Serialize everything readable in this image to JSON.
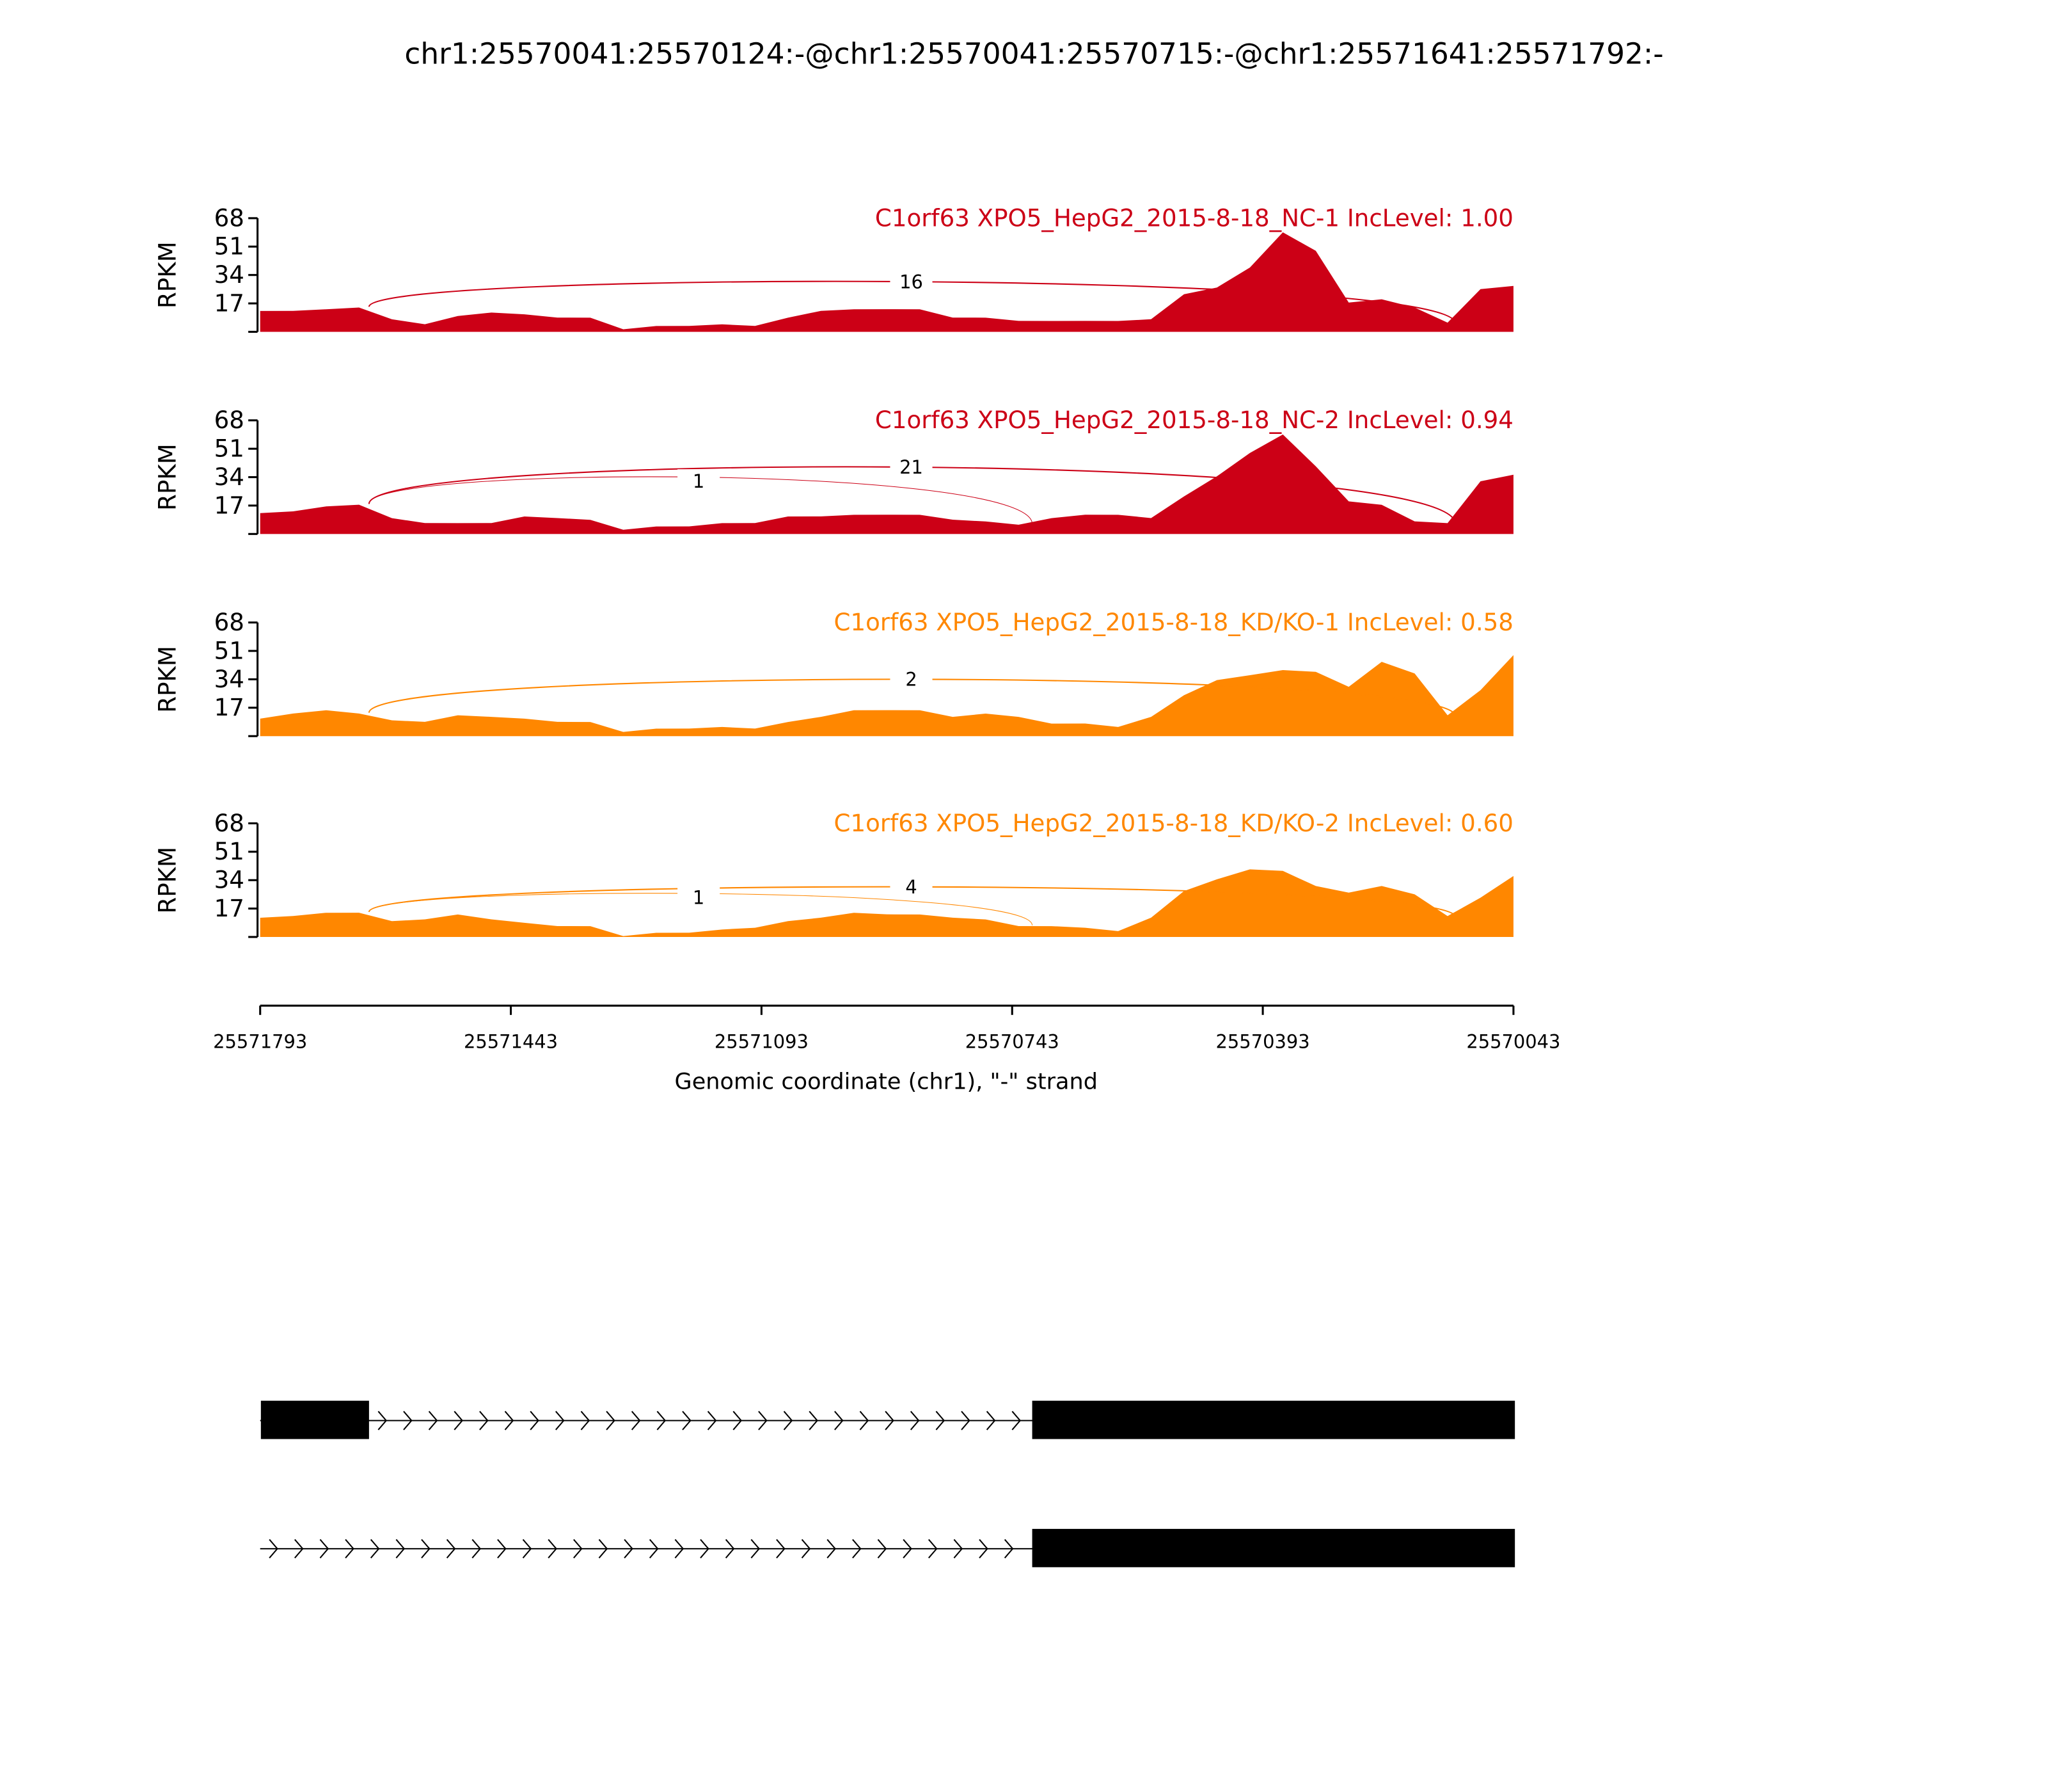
{
  "chart_data": {
    "type": "area",
    "title": "chr1:25570041:25570124:-@chr1:25570041:25570715:-@chr1:25571641:25571792:-",
    "xlabel": "Genomic coordinate (chr1), \"-\" strand",
    "ylabel": "RPKM",
    "xlim": [
      25571793,
      25570043
    ],
    "ylim": [
      0,
      68
    ],
    "yticks": [
      "17",
      "34",
      "51",
      "68"
    ],
    "xticks": [
      "25571793",
      "25571443",
      "25571093",
      "25570743",
      "25570393",
      "25570043"
    ],
    "colors": {
      "NC": "#cc0016",
      "KD": "#ff8700"
    },
    "x": [
      25571793,
      25571747,
      25571701,
      25571655,
      25571609,
      25571563,
      25571517,
      25571470,
      25571424,
      25571378,
      25571332,
      25571286,
      25571240,
      25571194,
      25571148,
      25571102,
      25571056,
      25571010,
      25570964,
      25570918,
      25570872,
      25570826,
      25570780,
      25570734,
      25570688,
      25570641,
      25570595,
      25570549,
      25570503,
      25570457,
      25570411,
      25570365,
      25570319,
      25570273,
      25570227,
      25570181,
      25570135,
      25570089,
      25570043
    ],
    "series": [
      {
        "name": "C1orf63 XPO5_HepG2_2015-8-18_NC-1 IncLevel: 1.00",
        "group": "NC",
        "values": [
          12,
          13,
          13,
          15,
          7,
          5,
          9,
          12,
          10,
          9,
          8,
          2,
          3,
          4,
          4,
          4,
          8,
          13,
          13,
          14,
          13,
          9,
          8,
          7,
          6,
          7,
          6,
          8,
          22,
          27,
          38,
          60,
          48,
          18,
          19,
          15,
          5,
          26,
          27
        ],
        "junctions": [
          {
            "from": 25571641,
            "to": 25570124,
            "count": "16",
            "height": 30
          }
        ]
      },
      {
        "name": "C1orf63 XPO5_HepG2_2015-8-18_NC-2 IncLevel: 0.94",
        "group": "NC",
        "values": [
          12,
          14,
          16,
          18,
          9,
          7,
          6,
          7,
          10,
          10,
          8,
          3,
          4,
          5,
          6,
          7,
          10,
          11,
          11,
          12,
          11,
          9,
          7,
          6,
          9,
          12,
          11,
          10,
          22,
          35,
          48,
          60,
          40,
          20,
          17,
          8,
          6,
          32,
          35
        ],
        "junctions": [
          {
            "from": 25571641,
            "to": 25570124,
            "count": "21",
            "height": 40
          },
          {
            "from": 25571641,
            "to": 25570715,
            "count": "1",
            "height": 34
          }
        ]
      },
      {
        "name": "C1orf63 XPO5_HepG2_2015-8-18_KD/KO-1 IncLevel: 0.58",
        "group": "KD",
        "values": [
          10,
          14,
          15,
          14,
          9,
          9,
          12,
          12,
          10,
          9,
          8,
          3,
          4,
          5,
          5,
          5,
          8,
          12,
          15,
          16,
          15,
          12,
          13,
          12,
          7,
          8,
          5,
          12,
          24,
          34,
          36,
          40,
          38,
          30,
          44,
          38,
          12,
          28,
          48
        ],
        "junctions": [
          {
            "from": 25571641,
            "to": 25570124,
            "count": "2",
            "height": 34
          }
        ]
      },
      {
        "name": "C1orf63 XPO5_HepG2_2015-8-18_KD/KO-2 IncLevel: 0.60",
        "group": "KD",
        "values": [
          11,
          13,
          14,
          15,
          9,
          11,
          13,
          11,
          8,
          7,
          6,
          1,
          2,
          3,
          4,
          6,
          9,
          12,
          14,
          14,
          13,
          12,
          10,
          7,
          6,
          6,
          3,
          12,
          27,
          35,
          40,
          40,
          30,
          27,
          30,
          26,
          12,
          24,
          36
        ],
        "junctions": [
          {
            "from": 25571641,
            "to": 25570124,
            "count": "4",
            "height": 30
          },
          {
            "from": 25571641,
            "to": 25570715,
            "count": "1",
            "height": 26
          }
        ]
      }
    ],
    "gene_models": [
      {
        "exons": [
          [
            25571792,
            25571641
          ],
          [
            25570715,
            25570041
          ]
        ]
      },
      {
        "exons": [
          [
            25570715,
            25570041
          ]
        ]
      }
    ]
  }
}
